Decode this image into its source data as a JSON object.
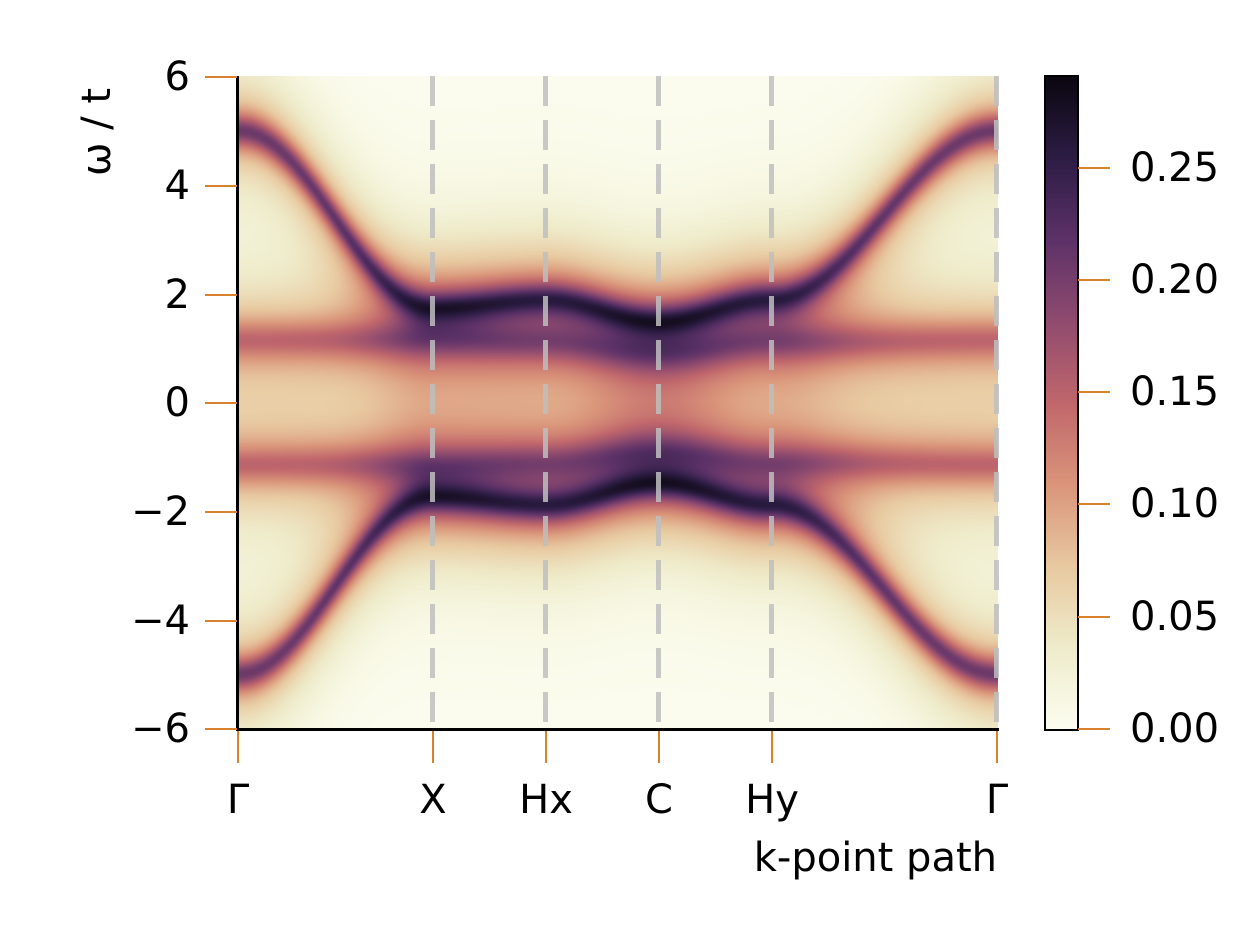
{
  "chart_data": {
    "type": "heatmap",
    "title": "",
    "xlabel": "k-point path",
    "ylabel": "ω / t",
    "ylim": [
      -6,
      6
    ],
    "yticks": [
      6,
      4,
      2,
      0,
      -2,
      -4,
      -6
    ],
    "ytick_labels": [
      "6",
      "4",
      "2",
      "0",
      "−2",
      "−4",
      "−6"
    ],
    "x_high_symmetry_points": [
      {
        "label": "Γ",
        "position": 0.0
      },
      {
        "label": "X",
        "position": 0.256
      },
      {
        "label": "Hx",
        "position": 0.405
      },
      {
        "label": "C",
        "position": 0.553
      },
      {
        "label": "Hy",
        "position": 0.702
      },
      {
        "label": "Γ",
        "position": 1.0
      }
    ],
    "vertical_dashed_lines_at": [
      "X",
      "Hx",
      "C",
      "Hy",
      "Γ"
    ],
    "colorbar": {
      "colormap": "magma_r (reversed)",
      "range": [
        0.0,
        0.29
      ],
      "ticks": [
        0.0,
        0.05,
        0.1,
        0.15,
        0.2,
        0.25
      ],
      "tick_labels": [
        "0.00",
        "0.05",
        "0.10",
        "0.15",
        "0.20",
        "0.25"
      ]
    },
    "bands": [
      {
        "name": "upper dispersive band",
        "omega_at_points": [
          5.0,
          1.75,
          1.9,
          1.5,
          1.9,
          5.0
        ],
        "intensity": "high"
      },
      {
        "name": "upper flat band",
        "omega_at_points": [
          1.15,
          1.15,
          1.1,
          0.9,
          1.1,
          1.15
        ],
        "intensity": "medium"
      },
      {
        "name": "lower flat band",
        "omega_at_points": [
          -1.15,
          -1.15,
          -1.1,
          -0.9,
          -1.1,
          -1.15
        ],
        "intensity": "medium"
      },
      {
        "name": "lower dispersive band",
        "omega_at_points": [
          -5.0,
          -1.75,
          -1.9,
          -1.5,
          -1.9,
          -5.0
        ],
        "intensity": "high"
      }
    ],
    "grid": false,
    "legend": null
  },
  "colors": {
    "tick_color": "#d9822b",
    "dashed_line_color": "#bebebe",
    "colormap_stops": [
      "#fcfdf0",
      "#efeccb",
      "#e8c9a0",
      "#da957a",
      "#c0676c",
      "#904b6f",
      "#5d3268",
      "#2d1d45",
      "#0b0710"
    ]
  }
}
